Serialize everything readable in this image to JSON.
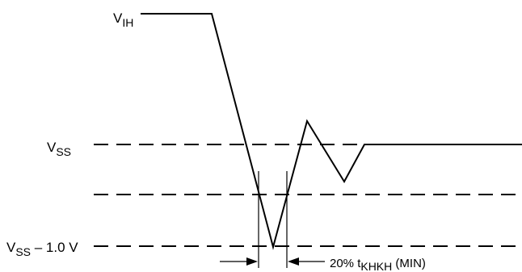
{
  "labels": {
    "vih": {
      "main": "V",
      "sub": "IH"
    },
    "vss": {
      "main": "V",
      "sub": "SS"
    },
    "vss_minus": {
      "main": "V",
      "sub": "SS",
      "suffix": " – 1.0 V"
    },
    "timing": {
      "prefix": "20% t",
      "sub": "KHKH",
      "suffix": " (MIN)"
    }
  },
  "colors": {
    "stroke": "#000000",
    "background": "#ffffff"
  }
}
